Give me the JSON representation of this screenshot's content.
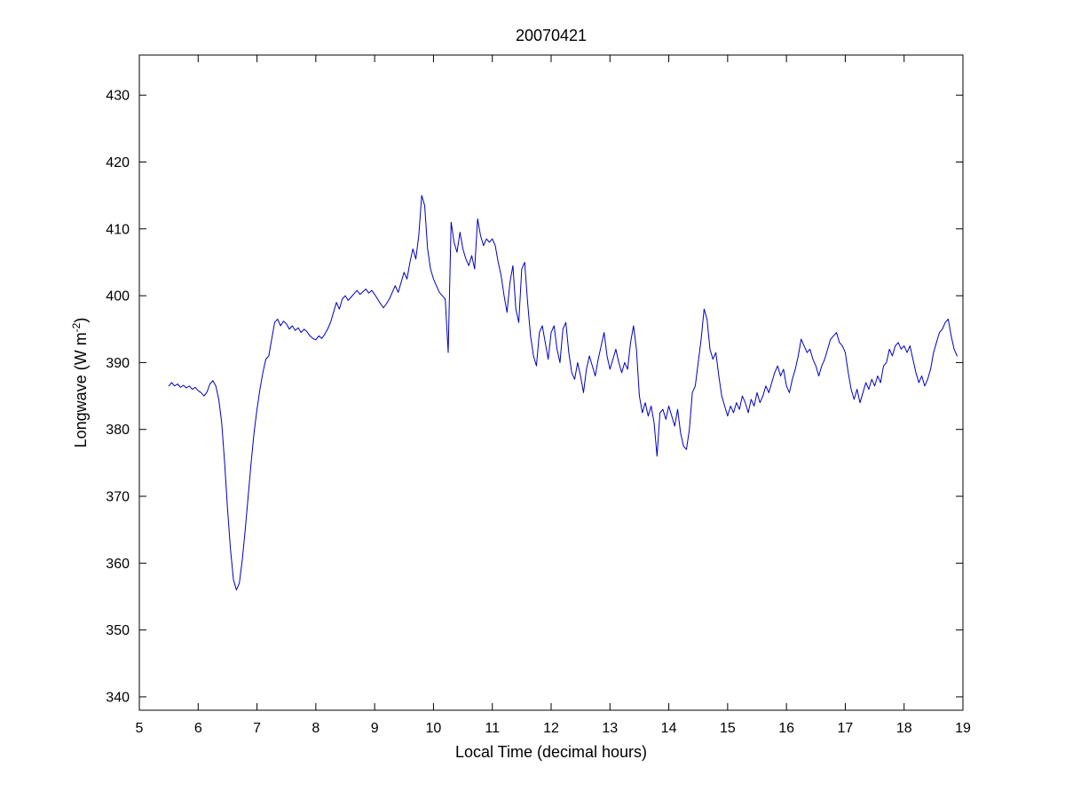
{
  "chart_data": {
    "type": "line",
    "title": "20070421",
    "xlabel": "Local Time (decimal hours)",
    "ylabel_main": "Longwave (W m",
    "ylabel_sup": "-2",
    "ylabel_end": ")",
    "xlim": [
      5,
      19
    ],
    "ylim": [
      338,
      436
    ],
    "xticks": [
      5,
      6,
      7,
      8,
      9,
      10,
      11,
      12,
      13,
      14,
      15,
      16,
      17,
      18,
      19
    ],
    "yticks": [
      340,
      350,
      360,
      370,
      380,
      390,
      400,
      410,
      420,
      430
    ],
    "grid": false,
    "legend": "none",
    "line_color": "#0000bf",
    "axis_color": "#000000",
    "background_color": "#ffffff",
    "x_start": 5.5,
    "x_step": 0.05,
    "values": [
      386.5,
      387.0,
      386.5,
      386.8,
      386.3,
      386.6,
      386.2,
      386.5,
      386.0,
      386.3,
      385.8,
      385.5,
      385.0,
      385.6,
      386.8,
      387.3,
      386.5,
      384.5,
      381.0,
      375.0,
      368.0,
      362.0,
      357.5,
      356.0,
      357.0,
      360.5,
      365.0,
      370.0,
      375.0,
      379.5,
      383.0,
      386.0,
      388.5,
      390.5,
      391.0,
      393.5,
      396.0,
      396.5,
      395.5,
      396.2,
      395.8,
      395.0,
      395.5,
      394.8,
      395.2,
      394.5,
      395.0,
      394.6,
      394.0,
      393.6,
      393.4,
      394.0,
      393.6,
      394.2,
      395.0,
      396.0,
      397.5,
      399.0,
      398.0,
      399.5,
      400.0,
      399.3,
      399.8,
      400.3,
      400.8,
      400.2,
      400.6,
      401.0,
      400.4,
      400.8,
      400.2,
      399.5,
      398.8,
      398.2,
      398.8,
      399.5,
      400.5,
      401.5,
      400.5,
      402.0,
      403.5,
      402.5,
      405.0,
      407.0,
      405.5,
      409.0,
      415.0,
      413.5,
      407.0,
      404.0,
      402.5,
      401.5,
      400.5,
      400.0,
      399.5,
      391.5,
      411.0,
      408.0,
      406.5,
      409.5,
      407.0,
      405.5,
      404.5,
      406.0,
      404.0,
      411.5,
      409.0,
      407.5,
      408.5,
      408.0,
      408.5,
      407.5,
      405.0,
      403.0,
      400.0,
      397.5,
      402.0,
      404.5,
      398.0,
      396.0,
      404.0,
      405.0,
      399.0,
      394.0,
      391.0,
      389.5,
      394.5,
      395.5,
      393.0,
      390.5,
      394.5,
      395.5,
      392.0,
      390.0,
      395.0,
      396.0,
      391.5,
      388.5,
      387.5,
      390.0,
      388.0,
      385.5,
      389.0,
      391.0,
      389.5,
      388.0,
      390.5,
      392.5,
      394.5,
      391.0,
      389.0,
      390.5,
      392.0,
      390.0,
      388.5,
      390.0,
      389.0,
      393.0,
      395.5,
      392.0,
      385.0,
      382.5,
      384.0,
      382.0,
      383.5,
      381.0,
      376.0,
      382.5,
      383.0,
      381.5,
      383.5,
      382.0,
      380.5,
      383.0,
      379.5,
      377.5,
      377.0,
      380.0,
      385.5,
      386.5,
      390.0,
      393.5,
      398.0,
      396.5,
      392.0,
      390.5,
      391.5,
      388.0,
      385.0,
      383.5,
      382.0,
      383.5,
      382.5,
      384.0,
      383.0,
      385.0,
      384.0,
      382.5,
      384.5,
      383.5,
      385.5,
      384.0,
      385.0,
      386.5,
      385.5,
      387.0,
      388.5,
      389.5,
      388.0,
      389.0,
      386.5,
      385.5,
      387.5,
      389.0,
      391.0,
      393.5,
      392.5,
      391.5,
      392.0,
      390.5,
      389.5,
      388.0,
      389.5,
      390.5,
      392.0,
      393.5,
      394.0,
      394.5,
      393.0,
      392.5,
      391.5,
      388.5,
      386.0,
      384.5,
      386.0,
      384.0,
      385.5,
      387.0,
      386.0,
      387.5,
      386.5,
      388.0,
      387.0,
      389.5,
      390.0,
      392.0,
      391.0,
      392.5,
      393.0,
      392.0,
      392.5,
      391.5,
      392.5,
      390.5,
      388.5,
      387.0,
      388.0,
      386.5,
      387.5,
      389.0,
      391.5,
      393.0,
      394.5,
      395.0,
      396.0,
      396.5,
      394.0,
      392.0,
      391.0
    ]
  }
}
